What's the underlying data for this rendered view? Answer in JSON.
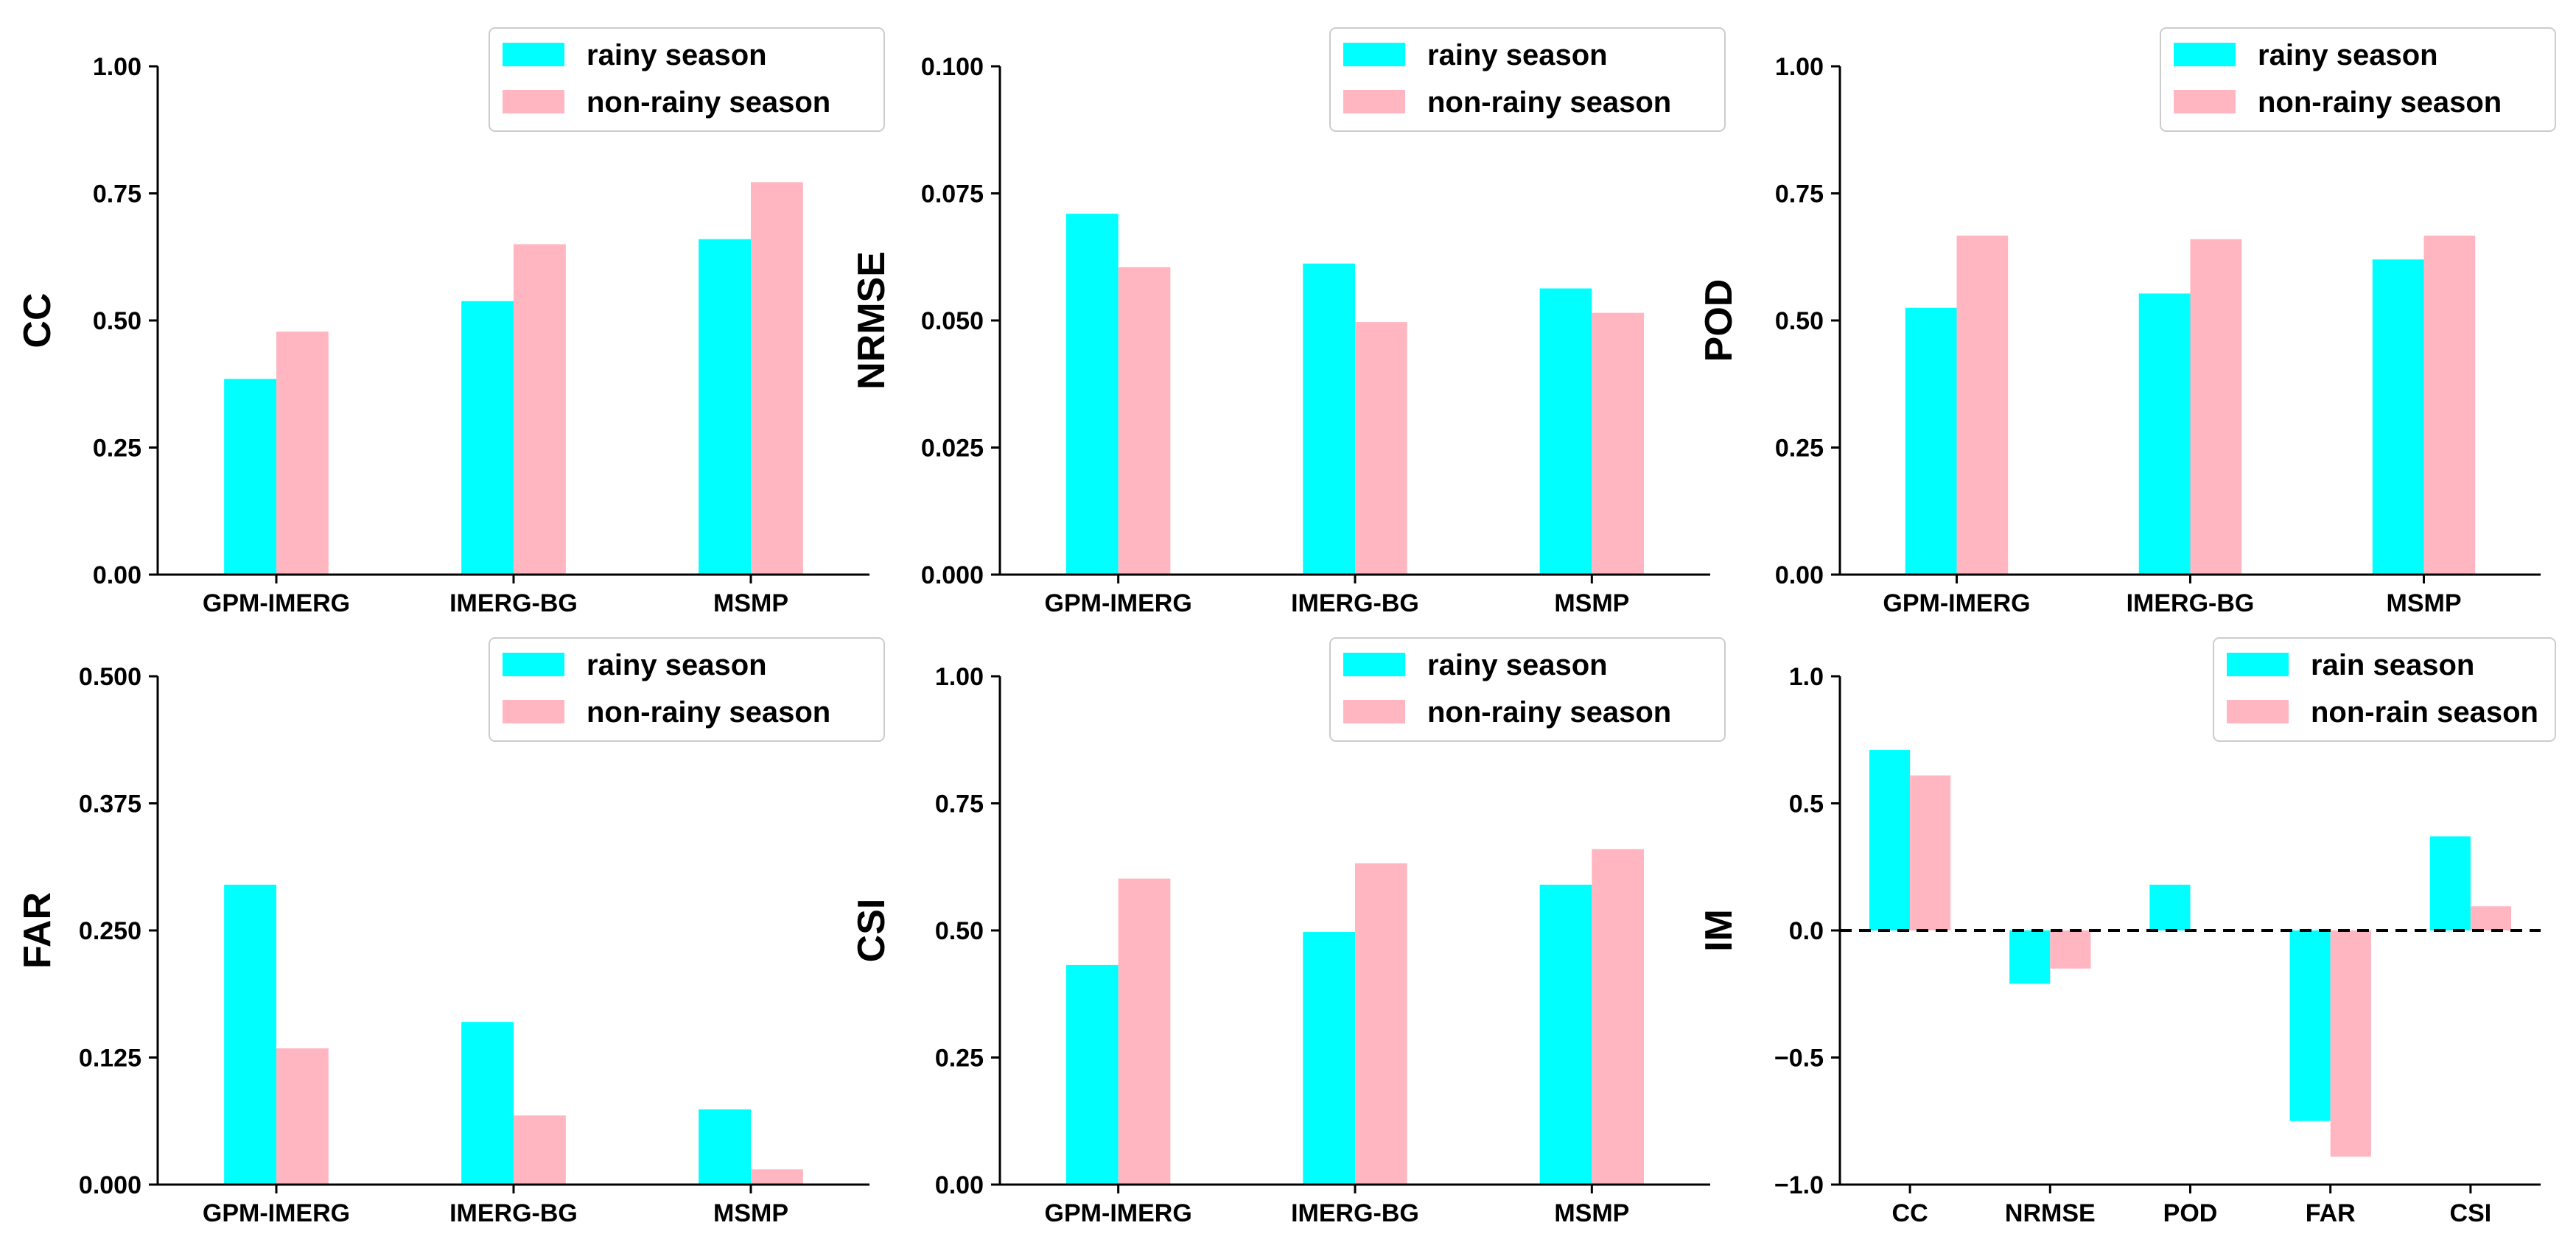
{
  "chart_data": [
    {
      "type": "bar",
      "ylabel": "CC",
      "categories": [
        "GPM-IMERG",
        "IMERG-BG",
        "MSMP"
      ],
      "ylim": [
        0,
        1
      ],
      "yticks": [
        "0.00",
        "0.25",
        "0.50",
        "0.75",
        "1.00"
      ],
      "legend_loc": "top-right",
      "series": [
        {
          "name": "rainy season",
          "color": "#00FFFF",
          "values": [
            0.385,
            0.538,
            0.66
          ]
        },
        {
          "name": "non-rainy season",
          "color": "#FFB6C1",
          "values": [
            0.478,
            0.65,
            0.772
          ]
        }
      ]
    },
    {
      "type": "bar",
      "ylabel": "NRMSE",
      "categories": [
        "GPM-IMERG",
        "IMERG-BG",
        "MSMP"
      ],
      "ylim": [
        0,
        0.1
      ],
      "yticks": [
        "0.000",
        "0.025",
        "0.050",
        "0.075",
        "0.100"
      ],
      "legend_loc": "top-right",
      "series": [
        {
          "name": "rainy season",
          "color": "#00FFFF",
          "values": [
            0.071,
            0.0612,
            0.0563
          ]
        },
        {
          "name": "non-rainy season",
          "color": "#FFB6C1",
          "values": [
            0.0605,
            0.0497,
            0.0515
          ]
        }
      ]
    },
    {
      "type": "bar",
      "ylabel": "POD",
      "categories": [
        "GPM-IMERG",
        "IMERG-BG",
        "MSMP"
      ],
      "ylim": [
        0,
        1
      ],
      "yticks": [
        "0.00",
        "0.25",
        "0.50",
        "0.75",
        "1.00"
      ],
      "legend_loc": "top-right",
      "series": [
        {
          "name": "rainy season",
          "color": "#00FFFF",
          "values": [
            0.525,
            0.553,
            0.62
          ]
        },
        {
          "name": "non-rainy season",
          "color": "#FFB6C1",
          "values": [
            0.667,
            0.66,
            0.667
          ]
        }
      ]
    },
    {
      "type": "bar",
      "ylabel": "FAR",
      "categories": [
        "GPM-IMERG",
        "IMERG-BG",
        "MSMP"
      ],
      "ylim": [
        0,
        0.5
      ],
      "yticks": [
        "0.000",
        "0.125",
        "0.250",
        "0.375",
        "0.500"
      ],
      "legend_loc": "top-right",
      "series": [
        {
          "name": "rainy season",
          "color": "#00FFFF",
          "values": [
            0.295,
            0.16,
            0.074
          ]
        },
        {
          "name": "non-rainy season",
          "color": "#FFB6C1",
          "values": [
            0.134,
            0.068,
            0.015
          ]
        }
      ]
    },
    {
      "type": "bar",
      "ylabel": "CSI",
      "categories": [
        "GPM-IMERG",
        "IMERG-BG",
        "MSMP"
      ],
      "ylim": [
        0,
        1
      ],
      "yticks": [
        "0.00",
        "0.25",
        "0.50",
        "0.75",
        "1.00"
      ],
      "legend_loc": "top-right",
      "series": [
        {
          "name": "rainy season",
          "color": "#00FFFF",
          "values": [
            0.432,
            0.497,
            0.59
          ]
        },
        {
          "name": "non-rainy season",
          "color": "#FFB6C1",
          "values": [
            0.602,
            0.632,
            0.66
          ]
        }
      ]
    },
    {
      "type": "bar",
      "ylabel": "IM",
      "categories": [
        "CC",
        "NRMSE",
        "POD",
        "FAR",
        "CSI"
      ],
      "ylim": [
        -1,
        1
      ],
      "yticks": [
        "−1.0",
        "−0.5",
        "0.0",
        "0.5",
        "1.0"
      ],
      "zero_line": true,
      "legend_loc": "top-right",
      "series": [
        {
          "name": "rain season",
          "color": "#00FFFF",
          "values": [
            0.71,
            -0.21,
            0.18,
            -0.75,
            0.37
          ]
        },
        {
          "name": "non-rain season",
          "color": "#FFB6C1",
          "values": [
            0.61,
            -0.15,
            0,
            -0.89,
            0.095
          ]
        }
      ]
    }
  ]
}
